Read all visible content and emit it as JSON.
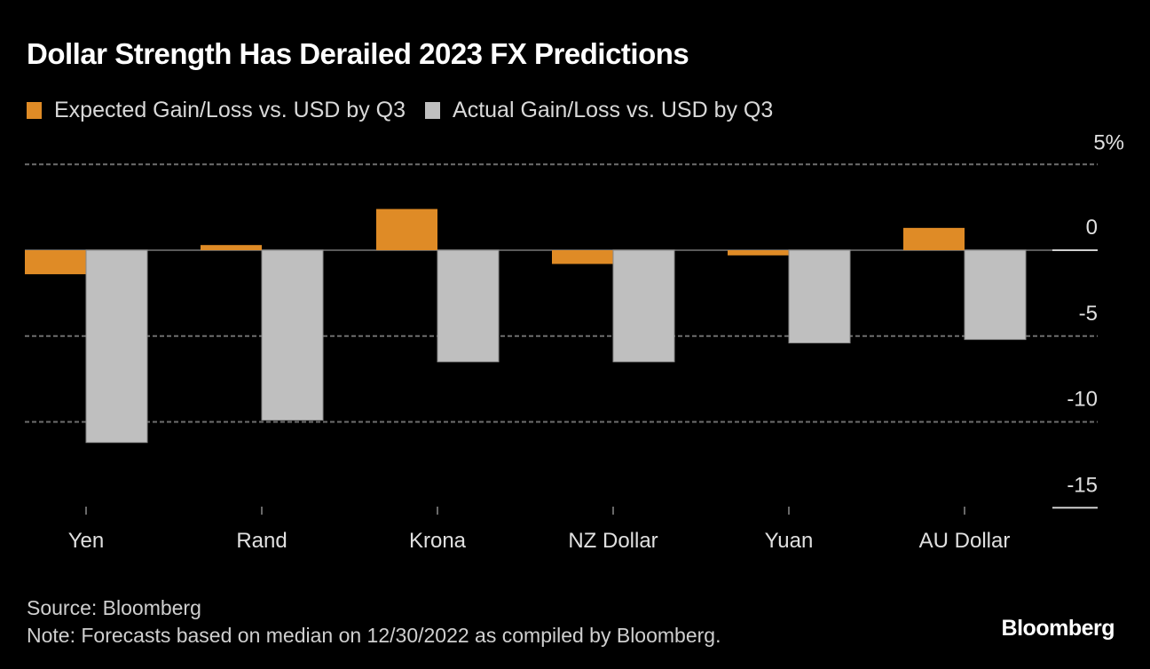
{
  "chart_data": {
    "type": "bar",
    "title": "Dollar Strength Has Derailed 2023 FX Predictions",
    "categories": [
      "Yen",
      "Rand",
      "Krona",
      "NZ Dollar",
      "Yuan",
      "AU Dollar"
    ],
    "series": [
      {
        "name": "Expected Gain/Loss vs. USD by Q3",
        "color": "#df8b26",
        "values": [
          -1.4,
          0.3,
          2.4,
          -0.8,
          -0.3,
          1.3
        ]
      },
      {
        "name": "Actual Gain/Loss vs. USD by Q3",
        "color": "#bfbfbf",
        "values": [
          -11.2,
          -9.9,
          -6.5,
          -6.5,
          -5.4,
          -5.2
        ]
      }
    ],
    "xlabel": "",
    "ylabel": "",
    "ylim": [
      -15,
      5
    ],
    "yticks": [
      5,
      0,
      -5,
      -10,
      -15
    ],
    "ytick_labels": [
      "5%",
      "0",
      "-5",
      "-10",
      "-15"
    ],
    "grid": true,
    "legend_position": "top-left",
    "y_axis_side": "right"
  },
  "footer": {
    "source": "Source: Bloomberg",
    "note": "Note: Forecasts based on median on 12/30/2022 as compiled by Bloomberg.",
    "brand": "Bloomberg"
  }
}
